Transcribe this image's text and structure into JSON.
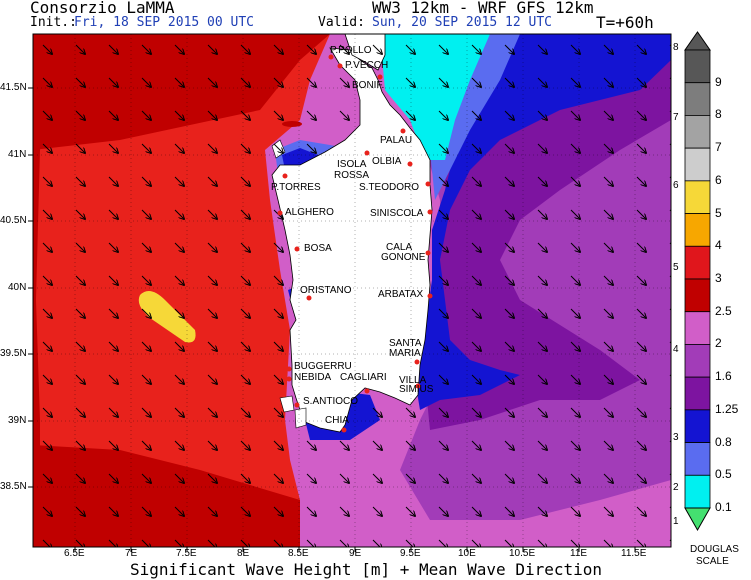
{
  "header": {
    "org": "Consorzio LaMMA",
    "model": "WW3 12km - WRF GFS 12km",
    "init_label": "Init.:",
    "init_value": "Fri, 18 SEP 2015   00 UTC",
    "valid_label": "Valid:",
    "valid_value": "Sun, 20 SEP 2015   12 UTC",
    "forecast_step": "T=+60h"
  },
  "footer": {
    "title": "Significant Wave Height [m] + Mean Wave Direction"
  },
  "axes": {
    "lon_ticks": [
      "6.5E",
      "7E",
      "7.5E",
      "8E",
      "8.5E",
      "9E",
      "9.5E",
      "10E",
      "10.5E",
      "11E",
      "11.5E"
    ],
    "lat_ticks": [
      "41.5N",
      "41N",
      "40.5N",
      "40N",
      "39.5N",
      "39N",
      "38.5N"
    ]
  },
  "cities": [
    {
      "name": "P.POLLO"
    },
    {
      "name": "P.VECCH"
    },
    {
      "name": "BONIF."
    },
    {
      "name": "PALAU"
    },
    {
      "name": "ISOLA"
    },
    {
      "name": "ROSSA"
    },
    {
      "name": "OLBIA"
    },
    {
      "name": "P.TORRES"
    },
    {
      "name": "S.TEODORO"
    },
    {
      "name": "ALGHERO"
    },
    {
      "name": "SINISCOLA"
    },
    {
      "name": "BOSA"
    },
    {
      "name": "CALA"
    },
    {
      "name": "GONONE"
    },
    {
      "name": "ORISTANO"
    },
    {
      "name": "ARBATAX"
    },
    {
      "name": "SANTA"
    },
    {
      "name": "MARIA"
    },
    {
      "name": "BUGGERRU"
    },
    {
      "name": "NEBIDA"
    },
    {
      "name": "CAGLIARI"
    },
    {
      "name": "VILLA"
    },
    {
      "name": "SIMIUS"
    },
    {
      "name": "S.ANTIOCO"
    },
    {
      "name": "CHIA"
    }
  ],
  "colorbar": {
    "meters": [
      {
        "label": "9",
        "color": "#575757"
      },
      {
        "label": "8",
        "color": "#7d7d7d"
      },
      {
        "label": "7",
        "color": "#a3a3a3"
      },
      {
        "label": "6",
        "color": "#cdcdcd"
      },
      {
        "label": "5",
        "color": "#f6d838"
      },
      {
        "label": "4",
        "color": "#f7a700"
      },
      {
        "label": "3",
        "color": "#e0161c"
      },
      {
        "label": "2.5",
        "color": "#c00000"
      },
      {
        "label": "2",
        "color": "#d15ec8"
      },
      {
        "label": "1.6",
        "color": "#a23cb8"
      },
      {
        "label": "1.25",
        "color": "#7d14a0"
      },
      {
        "label": "0.8",
        "color": "#1414d2"
      },
      {
        "label": "0.5",
        "color": "#5a6cf0"
      },
      {
        "label": "0.1",
        "color": "#00f0f0"
      }
    ],
    "bottom_color": "#44e070",
    "douglas": [
      "8",
      "7",
      "6",
      "5",
      "4",
      "3",
      "2",
      "1"
    ],
    "douglas_label_1": "DOUGLAS",
    "douglas_label_2": "SCALE"
  },
  "legend_colors": {
    "red": "#e8221c",
    "darkred": "#c00000",
    "pink": "#d15ec8",
    "violet": "#a23cb8",
    "purple": "#7d14a0",
    "blue": "#1414d2",
    "lightblue": "#5a6cf0",
    "cyan": "#00f0f0",
    "yellow": "#f6d838",
    "land": "#ffffff"
  }
}
